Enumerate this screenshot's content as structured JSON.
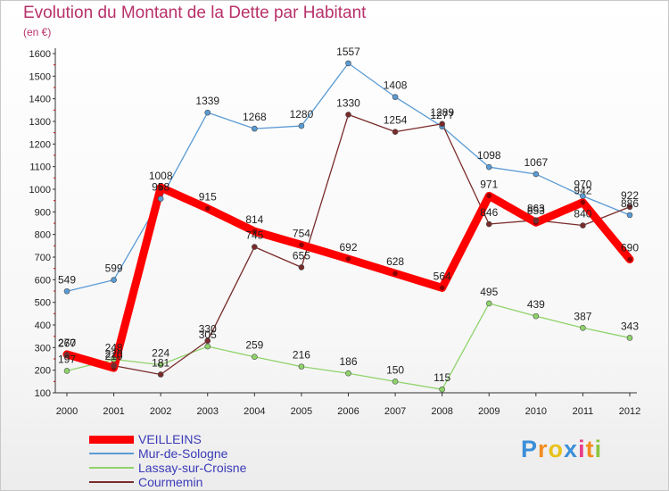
{
  "title": "Evolution du Montant de la Dette par Habitant",
  "subtitle": "(en €)",
  "logo": {
    "letters": [
      "P",
      "r",
      "o",
      "x",
      "i",
      "t",
      "i"
    ],
    "colors": [
      "#3b8fd8",
      "#f28c1e",
      "#e8c21a",
      "#3b8fd8",
      "#e83c8c",
      "#f28c1e",
      "#8cc63f"
    ]
  },
  "chart_data": {
    "type": "line",
    "title": "Evolution du Montant de la Dette par Habitant",
    "ylabel": "(en €)",
    "xlabel": "",
    "x": [
      "2000",
      "2001",
      "2002",
      "2003",
      "2004",
      "2005",
      "2006",
      "2007",
      "2008",
      "2009",
      "2010",
      "2011",
      "2012"
    ],
    "ylim": [
      100,
      1600
    ],
    "yticks": [
      "100",
      "200",
      "300",
      "400",
      "500",
      "600",
      "700",
      "800",
      "900",
      "1000",
      "1100",
      "1200",
      "1300",
      "1400",
      "1500",
      "1600"
    ],
    "grid": false,
    "legend_position": "bottom-left",
    "series": [
      {
        "name": "VEILLEINS",
        "color": "#ff0000",
        "values": [
          270,
          210,
          1008,
          915,
          814,
          754,
          692,
          628,
          564,
          971,
          853,
          942,
          690
        ],
        "labels": [
          "270",
          "210",
          "1008",
          "915",
          "814",
          "754",
          "692",
          "628",
          "564",
          "971",
          "853",
          "942",
          "690"
        ]
      },
      {
        "name": "Mur-de-Sologne",
        "color": "#5a9bd4",
        "values": [
          549,
          599,
          958,
          1339,
          1268,
          1280,
          1557,
          1408,
          1277,
          1098,
          1067,
          970,
          886
        ],
        "labels": [
          "549",
          "599",
          "958",
          "1339",
          "1268",
          "1280",
          "1557",
          "1408",
          "1277",
          "1098",
          "1067",
          "970",
          "886"
        ]
      },
      {
        "name": "Lassay-sur-Croisne",
        "color": "#8fd36b",
        "values": [
          197,
          248,
          224,
          305,
          259,
          216,
          186,
          150,
          115,
          495,
          439,
          387,
          343
        ],
        "labels": [
          "197",
          "248",
          "224",
          "305",
          "259",
          "216",
          "186",
          "150",
          "115",
          "495",
          "439",
          "387",
          "343"
        ]
      },
      {
        "name": "Courmemin",
        "color": "#7a2a2a",
        "values": [
          267,
          220,
          181,
          330,
          745,
          655,
          1330,
          1254,
          1289,
          846,
          863,
          840,
          922
        ],
        "labels": [
          "267",
          "220",
          "181",
          "330",
          "745",
          "655",
          "1330",
          "1254",
          "1289",
          "846",
          "863",
          "840",
          "922"
        ]
      }
    ]
  }
}
